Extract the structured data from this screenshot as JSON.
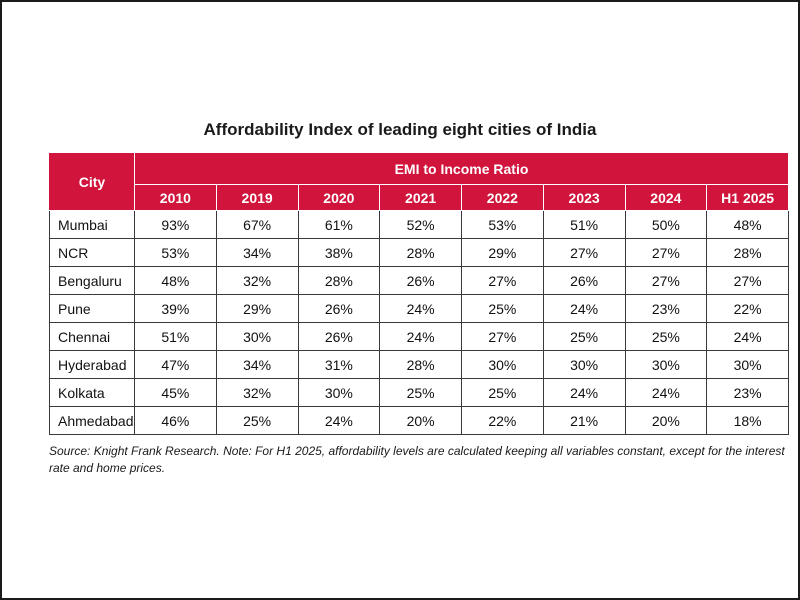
{
  "chart_data": {
    "type": "table",
    "title": "Affordability Index of leading eight cities of India",
    "city_header": "City",
    "group_header": "EMI to Income Ratio",
    "columns": [
      "2010",
      "2019",
      "2020",
      "2021",
      "2022",
      "2023",
      "2024",
      "H1 2025"
    ],
    "rows": [
      {
        "city": "Mumbai",
        "values": [
          "93%",
          "67%",
          "61%",
          "52%",
          "53%",
          "51%",
          "50%",
          "48%"
        ]
      },
      {
        "city": "NCR",
        "values": [
          "53%",
          "34%",
          "38%",
          "28%",
          "29%",
          "27%",
          "27%",
          "28%"
        ]
      },
      {
        "city": "Bengaluru",
        "values": [
          "48%",
          "32%",
          "28%",
          "26%",
          "27%",
          "26%",
          "27%",
          "27%"
        ]
      },
      {
        "city": "Pune",
        "values": [
          "39%",
          "29%",
          "26%",
          "24%",
          "25%",
          "24%",
          "23%",
          "22%"
        ]
      },
      {
        "city": "Chennai",
        "values": [
          "51%",
          "30%",
          "26%",
          "24%",
          "27%",
          "25%",
          "25%",
          "24%"
        ]
      },
      {
        "city": "Hyderabad",
        "values": [
          "47%",
          "34%",
          "31%",
          "28%",
          "30%",
          "30%",
          "30%",
          "30%"
        ]
      },
      {
        "city": "Kolkata",
        "values": [
          "45%",
          "32%",
          "30%",
          "25%",
          "25%",
          "24%",
          "24%",
          "23%"
        ]
      },
      {
        "city": "Ahmedabad",
        "values": [
          "46%",
          "25%",
          "24%",
          "20%",
          "22%",
          "21%",
          "20%",
          "18%"
        ]
      }
    ],
    "source": "Source: Knight Frank Research. Note: For H1 2025, affordability levels are calculated keeping all variables constant, except for the interest rate and home prices.",
    "header_color": "#d0143c"
  }
}
